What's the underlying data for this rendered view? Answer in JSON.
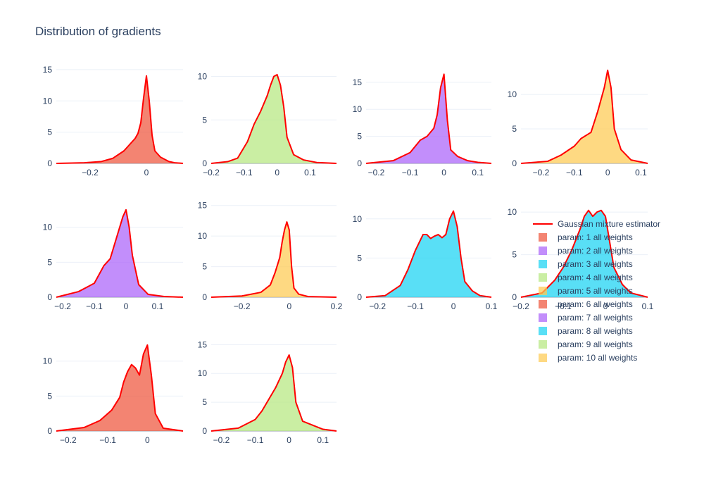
{
  "title": "Distribution of gradients",
  "colors": {
    "estimator": "#ff0000",
    "palette": [
      "#EF553B",
      "#AB63FA",
      "#19D3F3",
      "#B6E880",
      "#FECB52"
    ]
  },
  "legend": [
    {
      "label": "Gaussian mixture estimator",
      "type": "line",
      "color": "#ff0000"
    },
    {
      "label": "param: 1 all weights",
      "type": "box",
      "color": "#EF553B"
    },
    {
      "label": "param: 2 all weights",
      "type": "box",
      "color": "#AB63FA"
    },
    {
      "label": "param: 3 all weights",
      "type": "box",
      "color": "#19D3F3"
    },
    {
      "label": "param: 4 all weights",
      "type": "box",
      "color": "#B6E880"
    },
    {
      "label": "param: 5 all weights",
      "type": "box",
      "color": "#FECB52"
    },
    {
      "label": "param: 6 all weights",
      "type": "box",
      "color": "#EF553B"
    },
    {
      "label": "param: 7 all weights",
      "type": "box",
      "color": "#AB63FA"
    },
    {
      "label": "param: 8 all weights",
      "type": "box",
      "color": "#19D3F3"
    },
    {
      "label": "param: 9 all weights",
      "type": "box",
      "color": "#B6E880"
    },
    {
      "label": "param: 10 all weights",
      "type": "box",
      "color": "#FECB52"
    }
  ],
  "chart_data": [
    {
      "type": "area",
      "series": "param: 1 all weights",
      "color": "#EF553B",
      "xlim": [
        -0.32,
        0.13
      ],
      "ylim": [
        0,
        16
      ],
      "xticks": [
        -0.2,
        0
      ],
      "xtick_labels": [
        "−0.2",
        "0"
      ],
      "yticks": [
        0,
        5,
        10,
        15
      ],
      "x": [
        -0.32,
        -0.22,
        -0.16,
        -0.12,
        -0.08,
        -0.06,
        -0.04,
        -0.03,
        -0.02,
        -0.01,
        0,
        0.01,
        0.02,
        0.03,
        0.05,
        0.08,
        0.1,
        0.13
      ],
      "y": [
        0,
        0.1,
        0.3,
        0.8,
        2.0,
        3.0,
        4.0,
        4.8,
        6.5,
        10.5,
        14.0,
        10.0,
        4.5,
        2.0,
        1.0,
        0.3,
        0.1,
        0
      ]
    },
    {
      "type": "area",
      "series": "param: 4 all weights",
      "color": "#B6E880",
      "xlim": [
        -0.2,
        0.18
      ],
      "ylim": [
        0,
        11.5
      ],
      "xticks": [
        -0.2,
        -0.1,
        0,
        0.1
      ],
      "xtick_labels": [
        "−0.2",
        "−0.1",
        "0",
        "0.1"
      ],
      "yticks": [
        0,
        5,
        10
      ],
      "x": [
        -0.2,
        -0.15,
        -0.12,
        -0.09,
        -0.07,
        -0.05,
        -0.03,
        -0.02,
        -0.01,
        0,
        0.01,
        0.02,
        0.03,
        0.05,
        0.08,
        0.12,
        0.18
      ],
      "y": [
        0,
        0.2,
        0.6,
        2.5,
        4.5,
        6.0,
        7.8,
        9.0,
        10.0,
        10.2,
        9.0,
        6.5,
        3.0,
        1.0,
        0.4,
        0.1,
        0
      ]
    },
    {
      "type": "area",
      "series": "param: 7 all weights",
      "color": "#AB63FA",
      "xlim": [
        -0.23,
        0.14
      ],
      "ylim": [
        0,
        18.5
      ],
      "xticks": [
        -0.2,
        -0.1,
        0,
        0.1
      ],
      "xtick_labels": [
        "−0.2",
        "−0.1",
        "0",
        "0.1"
      ],
      "yticks": [
        0,
        5,
        10,
        15
      ],
      "x": [
        -0.23,
        -0.15,
        -0.1,
        -0.07,
        -0.05,
        -0.03,
        -0.02,
        -0.01,
        0,
        0.01,
        0.02,
        0.04,
        0.07,
        0.1,
        0.14
      ],
      "y": [
        0,
        0.5,
        2.0,
        4.3,
        5.0,
        6.5,
        9.0,
        14.0,
        16.5,
        8.0,
        2.5,
        1.3,
        0.5,
        0.2,
        0
      ]
    },
    {
      "type": "area",
      "series": "param: 10 all weights",
      "color": "#FECB52",
      "xlim": [
        -0.26,
        0.12
      ],
      "ylim": [
        0,
        14.5
      ],
      "xticks": [
        -0.2,
        -0.1,
        0,
        0.1
      ],
      "xtick_labels": [
        "−0.2",
        "−0.1",
        "0",
        "0.1"
      ],
      "yticks": [
        0,
        5,
        10
      ],
      "x": [
        -0.26,
        -0.18,
        -0.14,
        -0.1,
        -0.08,
        -0.05,
        -0.03,
        -0.01,
        0,
        0.01,
        0.02,
        0.04,
        0.07,
        0.12
      ],
      "y": [
        0,
        0.3,
        1.2,
        2.5,
        3.6,
        4.5,
        7.5,
        11.0,
        13.5,
        11.0,
        5.0,
        2.0,
        0.5,
        0
      ]
    },
    {
      "type": "area",
      "series": "param: 2 all weights",
      "color": "#AB63FA",
      "xlim": [
        -0.22,
        0.18
      ],
      "ylim": [
        0,
        14
      ],
      "xticks": [
        -0.2,
        -0.1,
        0,
        0.1
      ],
      "xtick_labels": [
        "−0.2",
        "−0.1",
        "0",
        "0.1"
      ],
      "yticks": [
        0,
        5,
        10
      ],
      "x": [
        -0.22,
        -0.15,
        -0.1,
        -0.07,
        -0.05,
        -0.03,
        -0.01,
        0,
        0.01,
        0.02,
        0.04,
        0.07,
        0.12,
        0.18
      ],
      "y": [
        0,
        0.8,
        2.0,
        4.5,
        5.5,
        8.5,
        11.5,
        12.5,
        10.0,
        6.0,
        1.8,
        0.4,
        0.1,
        0
      ]
    },
    {
      "type": "area",
      "series": "param: 5 all weights",
      "color": "#FECB52",
      "xlim": [
        -0.33,
        0.2
      ],
      "ylim": [
        0,
        16
      ],
      "xticks": [
        -0.2,
        0,
        0.2
      ],
      "xtick_labels": [
        "−0.2",
        "0",
        "0.2"
      ],
      "yticks": [
        0,
        5,
        10,
        15
      ],
      "x": [
        -0.33,
        -0.2,
        -0.12,
        -0.08,
        -0.06,
        -0.04,
        -0.03,
        -0.02,
        -0.01,
        0,
        0.01,
        0.02,
        0.04,
        0.08,
        0.2
      ],
      "y": [
        0,
        0.2,
        0.8,
        2.0,
        4.0,
        6.5,
        9.0,
        11.0,
        12.3,
        11.0,
        5.0,
        1.5,
        0.5,
        0.1,
        0
      ]
    },
    {
      "type": "area",
      "series": "param: 8 all weights",
      "color": "#19D3F3",
      "xlim": [
        -0.23,
        0.1
      ],
      "ylim": [
        0,
        12.5
      ],
      "xticks": [
        -0.2,
        -0.1,
        0,
        0.1
      ],
      "xtick_labels": [
        "−0.2",
        "−0.1",
        "0",
        "0.1"
      ],
      "yticks": [
        0,
        5,
        10
      ],
      "x": [
        -0.23,
        -0.18,
        -0.14,
        -0.12,
        -0.1,
        -0.08,
        -0.07,
        -0.06,
        -0.05,
        -0.04,
        -0.03,
        -0.02,
        -0.01,
        0,
        0.01,
        0.02,
        0.03,
        0.05,
        0.07,
        0.1
      ],
      "y": [
        0,
        0.2,
        1.5,
        3.5,
        6.0,
        8.0,
        8.0,
        7.5,
        7.8,
        8.0,
        7.6,
        8.0,
        10.0,
        11.0,
        9.0,
        5.0,
        2.0,
        0.8,
        0.2,
        0
      ]
    },
    {
      "type": "area",
      "series": "param: 3 all weights",
      "color": "#19D3F3",
      "xlim": [
        -0.2,
        0.1
      ],
      "ylim": [
        0,
        11.5
      ],
      "xticks": [
        -0.2,
        -0.1,
        0,
        0.1
      ],
      "xtick_labels": [
        "−0.2",
        "−0.1",
        "0",
        "0.1"
      ],
      "yticks": [
        0,
        5,
        10
      ],
      "x": [
        -0.2,
        -0.15,
        -0.12,
        -0.1,
        -0.08,
        -0.06,
        -0.05,
        -0.04,
        -0.03,
        -0.02,
        -0.01,
        0,
        0.01,
        0.02,
        0.04,
        0.06,
        0.1
      ],
      "y": [
        0,
        0.5,
        2.0,
        3.5,
        5.5,
        8.0,
        9.5,
        10.2,
        9.5,
        10.0,
        10.2,
        9.5,
        6.5,
        3.5,
        1.5,
        0.5,
        0
      ]
    },
    {
      "type": "area",
      "series": "param: 6 all weights",
      "color": "#EF553B",
      "xlim": [
        -0.23,
        0.09
      ],
      "ylim": [
        0,
        14
      ],
      "xticks": [
        -0.2,
        -0.1,
        0
      ],
      "xtick_labels": [
        "−0.2",
        "−0.1",
        "0"
      ],
      "yticks": [
        0,
        5,
        10
      ],
      "x": [
        -0.23,
        -0.16,
        -0.12,
        -0.09,
        -0.07,
        -0.06,
        -0.05,
        -0.04,
        -0.03,
        -0.02,
        -0.01,
        0,
        0.01,
        0.02,
        0.04,
        0.09
      ],
      "y": [
        0,
        0.5,
        1.5,
        3.0,
        4.8,
        7.0,
        8.5,
        9.5,
        9.0,
        8.0,
        11.0,
        12.3,
        8.0,
        2.5,
        0.4,
        0
      ]
    },
    {
      "type": "area",
      "series": "param: 9 all weights",
      "color": "#B6E880",
      "xlim": [
        -0.23,
        0.14
      ],
      "ylim": [
        0,
        17
      ],
      "xticks": [
        -0.2,
        -0.1,
        0,
        0.1
      ],
      "xtick_labels": [
        "−0.2",
        "−0.1",
        "0",
        "0.1"
      ],
      "yticks": [
        0,
        5,
        10,
        15
      ],
      "x": [
        -0.23,
        -0.15,
        -0.1,
        -0.08,
        -0.06,
        -0.04,
        -0.02,
        -0.01,
        0,
        0.01,
        0.02,
        0.04,
        0.07,
        0.1,
        0.14
      ],
      "y": [
        0,
        0.5,
        2.0,
        3.5,
        5.5,
        7.5,
        10.0,
        12.0,
        13.2,
        11.0,
        5.0,
        1.7,
        1.0,
        0.3,
        0
      ]
    }
  ]
}
